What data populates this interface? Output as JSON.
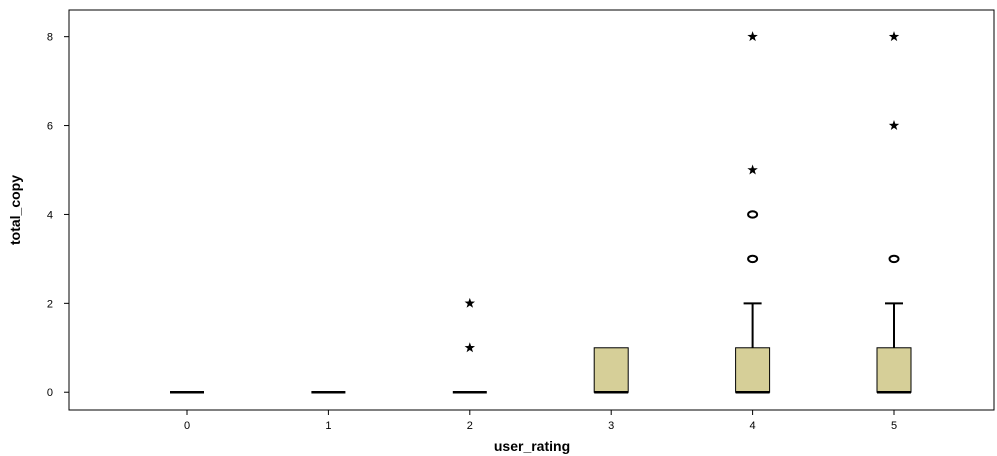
{
  "chart_data": {
    "type": "boxplot",
    "xlabel": "user_rating",
    "ylabel": "total_copy",
    "categories": [
      "0",
      "1",
      "2",
      "3",
      "4",
      "5"
    ],
    "ylim": [
      -0.4,
      8.6
    ],
    "yticks": [
      0,
      2,
      4,
      6,
      8
    ],
    "box_color": "#d6cf98",
    "boxes": [
      {
        "category": "0",
        "q1": 0,
        "median": 0,
        "q3": 0,
        "whisker_low": 0,
        "whisker_high": 0,
        "outliers": [],
        "extremes": []
      },
      {
        "category": "1",
        "q1": 0,
        "median": 0,
        "q3": 0,
        "whisker_low": 0,
        "whisker_high": 0,
        "outliers": [],
        "extremes": []
      },
      {
        "category": "2",
        "q1": 0,
        "median": 0,
        "q3": 0,
        "whisker_low": 0,
        "whisker_high": 0,
        "outliers": [],
        "extremes": [
          1,
          2
        ]
      },
      {
        "category": "3",
        "q1": 0,
        "median": 0,
        "q3": 1,
        "whisker_low": 0,
        "whisker_high": 1,
        "outliers": [],
        "extremes": []
      },
      {
        "category": "4",
        "q1": 0,
        "median": 0,
        "q3": 1,
        "whisker_low": 0,
        "whisker_high": 2,
        "outliers": [
          3,
          4
        ],
        "extremes": [
          5,
          8
        ]
      },
      {
        "category": "5",
        "q1": 0,
        "median": 0,
        "q3": 1,
        "whisker_low": 0,
        "whisker_high": 2,
        "outliers": [
          3
        ],
        "extremes": [
          6,
          8
        ]
      }
    ]
  }
}
